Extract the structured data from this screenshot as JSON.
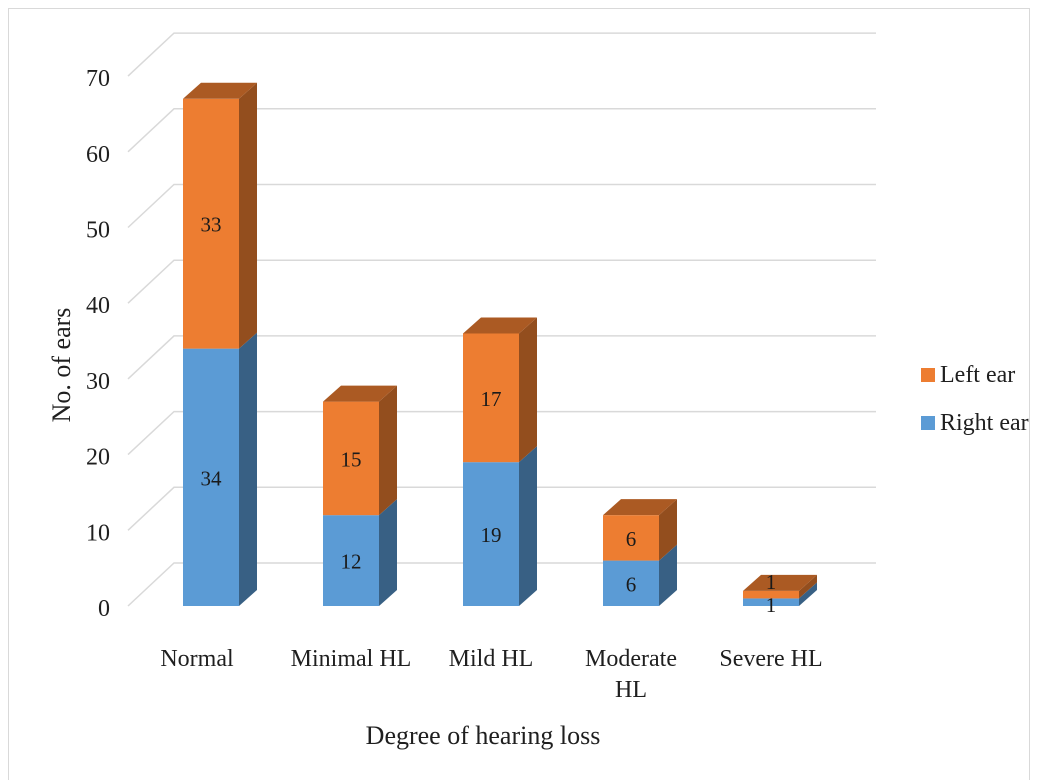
{
  "chart_data": {
    "type": "bar",
    "stacked": true,
    "three_d": true,
    "title": "",
    "xlabel": "Degree of hearing loss",
    "ylabel": "No. of ears",
    "ylim": [
      0,
      70
    ],
    "yticks": [
      0,
      10,
      20,
      30,
      40,
      50,
      60,
      70
    ],
    "grid": true,
    "legend_position": "right",
    "categories": [
      [
        "Normal"
      ],
      [
        "Minimal HL"
      ],
      [
        "Mild HL"
      ],
      [
        "Moderate",
        "HL"
      ],
      [
        "Severe HL"
      ]
    ],
    "series": [
      {
        "name": "Right ear",
        "values": [
          34,
          12,
          19,
          6,
          1
        ],
        "color": "#5b9bd5"
      },
      {
        "name": "Left ear",
        "values": [
          33,
          15,
          17,
          6,
          1
        ],
        "color": "#ed7d31"
      }
    ],
    "legend_order": [
      "Left ear",
      "Right ear"
    ]
  }
}
